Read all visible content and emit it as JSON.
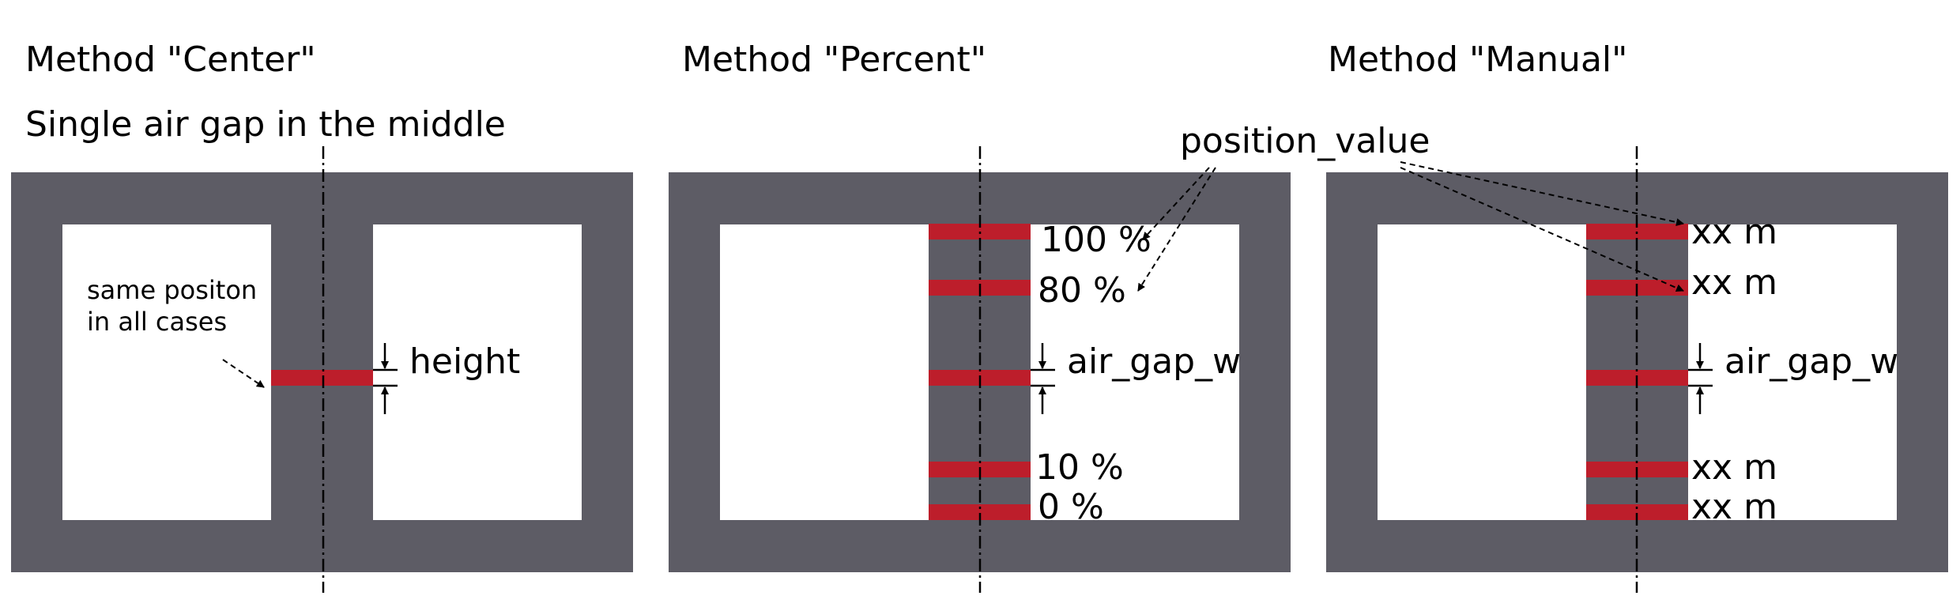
{
  "panels": [
    {
      "title": "Method \"Center\"",
      "subtitle": "Single air gap in the middle",
      "note_line1": "same positon",
      "note_line2": "in all cases",
      "dim_label": "height"
    },
    {
      "title": "Method \"Percent\"",
      "gap_labels": [
        "100 %",
        "80 %",
        "10 %",
        "0 %"
      ],
      "dim_label": "air_gap_w"
    },
    {
      "title": "Method \"Manual\"",
      "gap_labels": [
        "xx m",
        "xx m",
        "xx m",
        "xx m"
      ],
      "dim_label": "air_gap_w"
    }
  ],
  "callout": "position_value",
  "colors": {
    "core": "#5d5c65",
    "air_gap": "#bd1e2b",
    "background": "#ffffff"
  }
}
